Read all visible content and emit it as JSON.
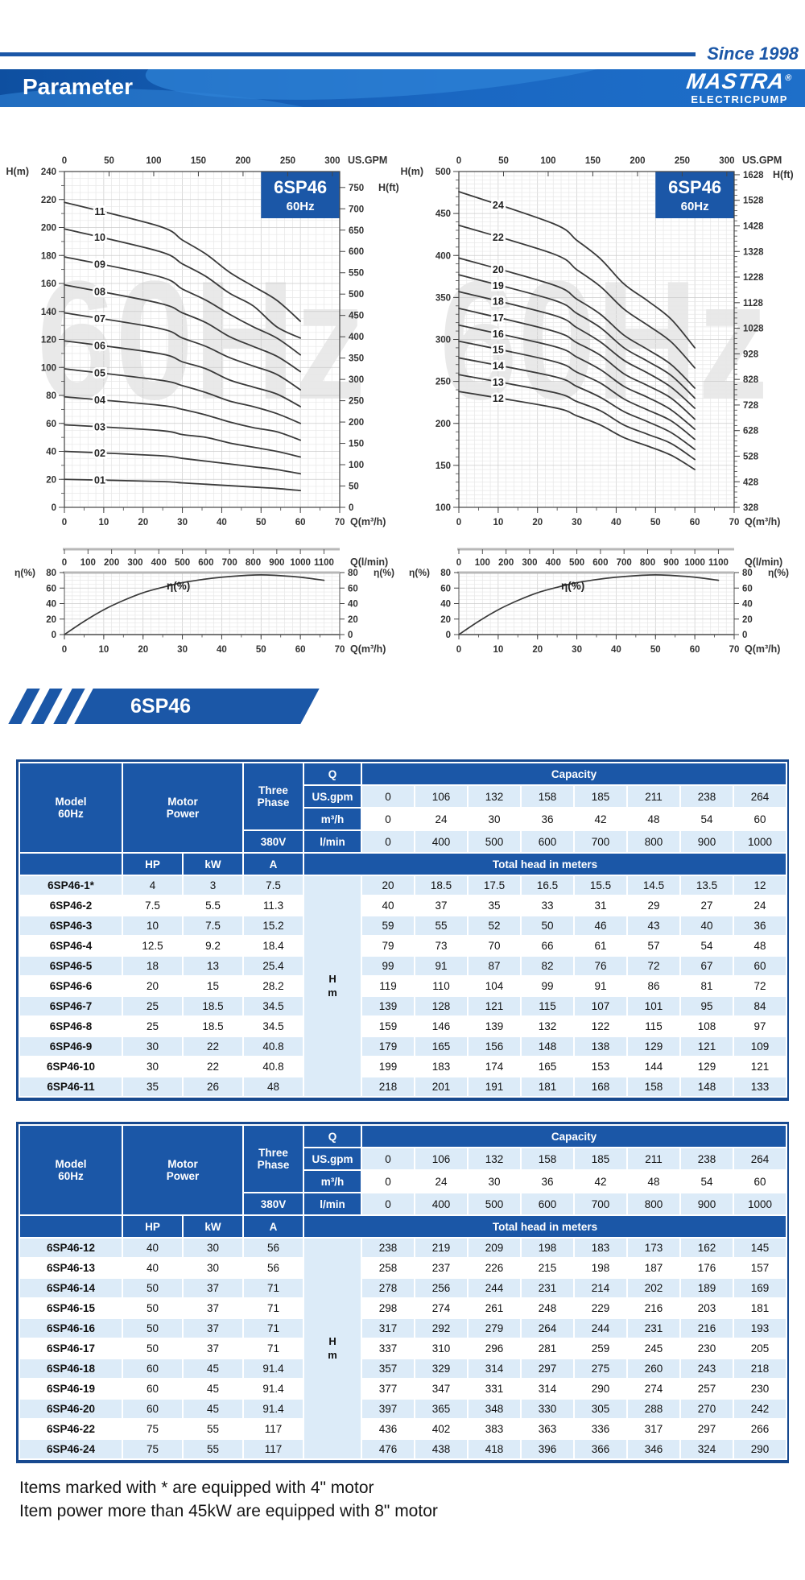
{
  "header": {
    "since": "Since 1998",
    "title": "Parameter",
    "brand": "MASTRA",
    "reg": "®",
    "brand_sub": "ELECTRICPUMP"
  },
  "watermark": [
    "60Hz",
    "60Hz"
  ],
  "section": {
    "title": "6SP46"
  },
  "colors": {
    "accent": "#1b57a7",
    "light_row": "#dcebf8",
    "curve": "#3a3a3a",
    "watermark": "#e9e9e9"
  },
  "chart_data": [
    {
      "id": "head-curves-low",
      "type": "line",
      "title": "6SP46",
      "subtitle": "60Hz",
      "xlabel": "Q(m³/h)",
      "xlim": [
        0,
        70
      ],
      "xtick_step": 10,
      "ylabel": "H(m)",
      "ylim": [
        0,
        240
      ],
      "ytick_step": 20,
      "yminor_step": 5,
      "top_axis": {
        "label": "US.GPM",
        "ticks": [
          0,
          50,
          100,
          150,
          200,
          250,
          300
        ],
        "to_x": 0.22712
      },
      "right_axis": {
        "label": "H(ft)",
        "start": 0,
        "end": 750,
        "step": 50,
        "to_m": 0.3048
      },
      "lmin_axis": {
        "label": "Q(l/min)",
        "ticks": [
          0,
          100,
          200,
          300,
          400,
          500,
          600,
          700,
          800,
          900,
          1000,
          1100
        ],
        "to_x": 0.06
      },
      "label_q": 9,
      "x": [
        0,
        24,
        30,
        36,
        42,
        48,
        54,
        60
      ],
      "series": [
        {
          "name": "01",
          "values": [
            20,
            18.5,
            17.5,
            16.5,
            15.5,
            14.5,
            13.5,
            12
          ]
        },
        {
          "name": "02",
          "values": [
            40,
            37,
            35,
            33,
            31,
            29,
            27,
            24
          ]
        },
        {
          "name": "03",
          "values": [
            59,
            55,
            52,
            50,
            46,
            43,
            40,
            36
          ]
        },
        {
          "name": "04",
          "values": [
            79,
            73,
            70,
            66,
            61,
            57,
            54,
            48
          ]
        },
        {
          "name": "05",
          "values": [
            99,
            91,
            87,
            82,
            76,
            72,
            67,
            60
          ]
        },
        {
          "name": "06",
          "values": [
            119,
            110,
            104,
            99,
            91,
            86,
            81,
            72
          ]
        },
        {
          "name": "07",
          "values": [
            139,
            128,
            121,
            115,
            107,
            101,
            95,
            84
          ]
        },
        {
          "name": "08",
          "values": [
            159,
            146,
            139,
            132,
            122,
            115,
            108,
            97
          ]
        },
        {
          "name": "09",
          "values": [
            179,
            165,
            156,
            148,
            138,
            129,
            121,
            109
          ]
        },
        {
          "name": "10",
          "values": [
            199,
            183,
            174,
            165,
            153,
            144,
            129,
            121
          ]
        },
        {
          "name": "11",
          "values": [
            218,
            201,
            191,
            181,
            168,
            158,
            148,
            133
          ]
        }
      ]
    },
    {
      "id": "head-curves-high",
      "type": "line",
      "title": "6SP46",
      "subtitle": "60Hz",
      "xlabel": "Q(m³/h)",
      "xlim": [
        0,
        70
      ],
      "xtick_step": 10,
      "ylabel": "H(m)",
      "ylim": [
        100,
        500
      ],
      "ytick_step": 50,
      "yminor_step": 5,
      "top_axis": {
        "label": "US.GPM",
        "ticks": [
          0,
          50,
          100,
          150,
          200,
          250,
          300
        ],
        "to_x": 0.22712
      },
      "right_axis": {
        "label": "H(ft)",
        "start": 328,
        "end": 1628,
        "step": 100,
        "minor": 20,
        "to_m": 0.3048
      },
      "lmin_axis": {
        "label": "Q(l/min)",
        "ticks": [
          0,
          100,
          200,
          300,
          400,
          500,
          600,
          700,
          800,
          900,
          1000,
          1100
        ],
        "to_x": 0.06
      },
      "label_q": 10,
      "x": [
        0,
        24,
        30,
        36,
        42,
        48,
        54,
        60
      ],
      "series": [
        {
          "name": "12",
          "values": [
            238,
            219,
            209,
            198,
            183,
            173,
            162,
            145
          ]
        },
        {
          "name": "13",
          "values": [
            258,
            237,
            226,
            215,
            198,
            187,
            176,
            157
          ]
        },
        {
          "name": "14",
          "values": [
            278,
            256,
            244,
            231,
            214,
            202,
            189,
            169
          ]
        },
        {
          "name": "15",
          "values": [
            298,
            274,
            261,
            248,
            229,
            216,
            203,
            181
          ]
        },
        {
          "name": "16",
          "values": [
            317,
            292,
            279,
            264,
            244,
            231,
            216,
            193
          ]
        },
        {
          "name": "17",
          "values": [
            337,
            310,
            296,
            281,
            259,
            245,
            230,
            205
          ]
        },
        {
          "name": "18",
          "values": [
            357,
            329,
            314,
            297,
            275,
            260,
            243,
            218
          ]
        },
        {
          "name": "19",
          "values": [
            377,
            347,
            331,
            314,
            290,
            274,
            257,
            230
          ]
        },
        {
          "name": "20",
          "values": [
            397,
            365,
            348,
            330,
            305,
            288,
            270,
            242
          ]
        },
        {
          "name": "22",
          "values": [
            436,
            402,
            383,
            363,
            336,
            317,
            297,
            266
          ]
        },
        {
          "name": "24",
          "values": [
            476,
            438,
            418,
            396,
            366,
            346,
            324,
            290
          ]
        }
      ]
    },
    {
      "id": "efficiency-low",
      "type": "line",
      "ylabel": "η(%)",
      "label": "η(%)",
      "xlabel": "Q(m³/h)",
      "ylim": [
        0,
        80
      ],
      "ytick_step": 20,
      "xlim": [
        0,
        70
      ],
      "xtick_step": 10,
      "points": [
        [
          0,
          0
        ],
        [
          5,
          17
        ],
        [
          10,
          32
        ],
        [
          15,
          44
        ],
        [
          20,
          54
        ],
        [
          25,
          61
        ],
        [
          30,
          67
        ],
        [
          35,
          71
        ],
        [
          40,
          74
        ],
        [
          45,
          76
        ],
        [
          50,
          77
        ],
        [
          55,
          76
        ],
        [
          60,
          74
        ],
        [
          66,
          70
        ]
      ]
    },
    {
      "id": "efficiency-high",
      "type": "line",
      "ylabel": "η(%)",
      "label": "η(%)",
      "xlabel": "Q(m³/h)",
      "ylim": [
        0,
        80
      ],
      "ytick_step": 20,
      "xlim": [
        0,
        70
      ],
      "xtick_step": 10,
      "points": [
        [
          0,
          0
        ],
        [
          5,
          17
        ],
        [
          10,
          32
        ],
        [
          15,
          44
        ],
        [
          20,
          54
        ],
        [
          25,
          61
        ],
        [
          30,
          67
        ],
        [
          35,
          71
        ],
        [
          40,
          74
        ],
        [
          45,
          76
        ],
        [
          50,
          77
        ],
        [
          55,
          76
        ],
        [
          60,
          74
        ],
        [
          66,
          70
        ]
      ]
    }
  ],
  "tables": {
    "model": [
      "Model",
      "60Hz"
    ],
    "motor": [
      "Motor",
      "Power"
    ],
    "three_phase": [
      "Three",
      "Phase"
    ],
    "volt": "380V",
    "q_label": "Q",
    "capacity_label": "Capacity",
    "unit_rows": [
      {
        "label": "US.gpm",
        "shade": "lt",
        "values": [
          "0",
          "106",
          "132",
          "158",
          "185",
          "211",
          "238",
          "264"
        ]
      },
      {
        "label": "m³/h",
        "shade": "wt",
        "values": [
          "0",
          "24",
          "30",
          "36",
          "42",
          "48",
          "54",
          "60"
        ]
      },
      {
        "label": "l/min",
        "shade": "lt",
        "values": [
          "0",
          "400",
          "500",
          "600",
          "700",
          "800",
          "900",
          "1000"
        ]
      }
    ],
    "col_headers": [
      "HP",
      "kW",
      "A"
    ],
    "total_head_label": "Total head in meters",
    "hm": [
      "H",
      "m"
    ],
    "table1_rows": [
      {
        "model": "6SP46-1*",
        "hp": "4",
        "kw": "3",
        "a": "7.5",
        "heads": [
          "20",
          "18.5",
          "17.5",
          "16.5",
          "15.5",
          "14.5",
          "13.5",
          "12"
        ]
      },
      {
        "model": "6SP46-2",
        "hp": "7.5",
        "kw": "5.5",
        "a": "11.3",
        "heads": [
          "40",
          "37",
          "35",
          "33",
          "31",
          "29",
          "27",
          "24"
        ]
      },
      {
        "model": "6SP46-3",
        "hp": "10",
        "kw": "7.5",
        "a": "15.2",
        "heads": [
          "59",
          "55",
          "52",
          "50",
          "46",
          "43",
          "40",
          "36"
        ]
      },
      {
        "model": "6SP46-4",
        "hp": "12.5",
        "kw": "9.2",
        "a": "18.4",
        "heads": [
          "79",
          "73",
          "70",
          "66",
          "61",
          "57",
          "54",
          "48"
        ]
      },
      {
        "model": "6SP46-5",
        "hp": "18",
        "kw": "13",
        "a": "25.4",
        "heads": [
          "99",
          "91",
          "87",
          "82",
          "76",
          "72",
          "67",
          "60"
        ]
      },
      {
        "model": "6SP46-6",
        "hp": "20",
        "kw": "15",
        "a": "28.2",
        "heads": [
          "119",
          "110",
          "104",
          "99",
          "91",
          "86",
          "81",
          "72"
        ]
      },
      {
        "model": "6SP46-7",
        "hp": "25",
        "kw": "18.5",
        "a": "34.5",
        "heads": [
          "139",
          "128",
          "121",
          "115",
          "107",
          "101",
          "95",
          "84"
        ]
      },
      {
        "model": "6SP46-8",
        "hp": "25",
        "kw": "18.5",
        "a": "34.5",
        "heads": [
          "159",
          "146",
          "139",
          "132",
          "122",
          "115",
          "108",
          "97"
        ]
      },
      {
        "model": "6SP46-9",
        "hp": "30",
        "kw": "22",
        "a": "40.8",
        "heads": [
          "179",
          "165",
          "156",
          "148",
          "138",
          "129",
          "121",
          "109"
        ]
      },
      {
        "model": "6SP46-10",
        "hp": "30",
        "kw": "22",
        "a": "40.8",
        "heads": [
          "199",
          "183",
          "174",
          "165",
          "153",
          "144",
          "129",
          "121"
        ]
      },
      {
        "model": "6SP46-11",
        "hp": "35",
        "kw": "26",
        "a": "48",
        "heads": [
          "218",
          "201",
          "191",
          "181",
          "168",
          "158",
          "148",
          "133"
        ]
      }
    ],
    "table2_rows": [
      {
        "model": "6SP46-12",
        "hp": "40",
        "kw": "30",
        "a": "56",
        "heads": [
          "238",
          "219",
          "209",
          "198",
          "183",
          "173",
          "162",
          "145"
        ]
      },
      {
        "model": "6SP46-13",
        "hp": "40",
        "kw": "30",
        "a": "56",
        "heads": [
          "258",
          "237",
          "226",
          "215",
          "198",
          "187",
          "176",
          "157"
        ]
      },
      {
        "model": "6SP46-14",
        "hp": "50",
        "kw": "37",
        "a": "71",
        "heads": [
          "278",
          "256",
          "244",
          "231",
          "214",
          "202",
          "189",
          "169"
        ]
      },
      {
        "model": "6SP46-15",
        "hp": "50",
        "kw": "37",
        "a": "71",
        "heads": [
          "298",
          "274",
          "261",
          "248",
          "229",
          "216",
          "203",
          "181"
        ]
      },
      {
        "model": "6SP46-16",
        "hp": "50",
        "kw": "37",
        "a": "71",
        "heads": [
          "317",
          "292",
          "279",
          "264",
          "244",
          "231",
          "216",
          "193"
        ]
      },
      {
        "model": "6SP46-17",
        "hp": "50",
        "kw": "37",
        "a": "71",
        "heads": [
          "337",
          "310",
          "296",
          "281",
          "259",
          "245",
          "230",
          "205"
        ]
      },
      {
        "model": "6SP46-18",
        "hp": "60",
        "kw": "45",
        "a": "91.4",
        "heads": [
          "357",
          "329",
          "314",
          "297",
          "275",
          "260",
          "243",
          "218"
        ]
      },
      {
        "model": "6SP46-19",
        "hp": "60",
        "kw": "45",
        "a": "91.4",
        "heads": [
          "377",
          "347",
          "331",
          "314",
          "290",
          "274",
          "257",
          "230"
        ]
      },
      {
        "model": "6SP46-20",
        "hp": "60",
        "kw": "45",
        "a": "91.4",
        "heads": [
          "397",
          "365",
          "348",
          "330",
          "305",
          "288",
          "270",
          "242"
        ]
      },
      {
        "model": "6SP46-22",
        "hp": "75",
        "kw": "55",
        "a": "117",
        "heads": [
          "436",
          "402",
          "383",
          "363",
          "336",
          "317",
          "297",
          "266"
        ]
      },
      {
        "model": "6SP46-24",
        "hp": "75",
        "kw": "55",
        "a": "117",
        "heads": [
          "476",
          "438",
          "418",
          "396",
          "366",
          "346",
          "324",
          "290"
        ]
      }
    ]
  },
  "notes": [
    "Items marked with * are equipped with 4\" motor",
    "Item power more than 45kW are equipped with 8\" motor"
  ]
}
